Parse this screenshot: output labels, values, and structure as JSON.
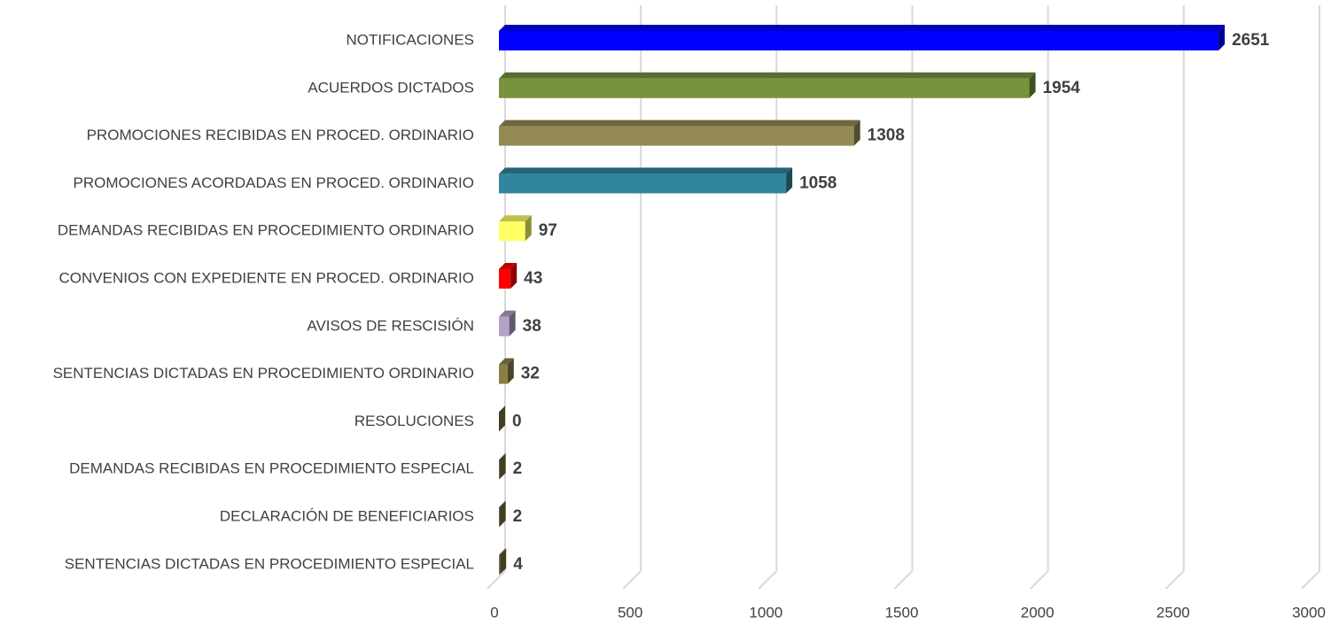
{
  "chart_data": {
    "type": "bar",
    "orientation": "horizontal",
    "categories": [
      "NOTIFICACIONES",
      "ACUERDOS DICTADOS",
      "PROMOCIONES RECIBIDAS EN PROCED. ORDINARIO",
      "PROMOCIONES ACORDADAS EN PROCED. ORDINARIO",
      "DEMANDAS RECIBIDAS EN PROCEDIMIENTO ORDINARIO",
      "CONVENIOS CON EXPEDIENTE EN PROCED. ORDINARIO",
      "AVISOS DE RESCISIÓN",
      "SENTENCIAS DICTADAS EN PROCEDIMIENTO ORDINARIO",
      "RESOLUCIONES",
      "DEMANDAS RECIBIDAS EN PROCEDIMIENTO ESPECIAL",
      "DECLARACIÓN DE BENEFICIARIOS",
      "SENTENCIAS DICTADAS EN PROCEDIMIENTO ESPECIAL"
    ],
    "values": [
      2651,
      1954,
      1308,
      1058,
      97,
      43,
      38,
      32,
      0,
      2,
      2,
      4
    ],
    "colors": [
      "#0000ff",
      "#77933c",
      "#948a54",
      "#31859c",
      "#ffff66",
      "#ff0000",
      "#b3a2c7",
      "#8a7f45",
      "#7a6f3c",
      "#7a6f3c",
      "#7a6f3c",
      "#7a6f3c"
    ],
    "xlim": [
      0,
      3000
    ],
    "xticks": [
      0,
      500,
      1000,
      1500,
      2000,
      2500,
      3000
    ],
    "grid": true
  }
}
